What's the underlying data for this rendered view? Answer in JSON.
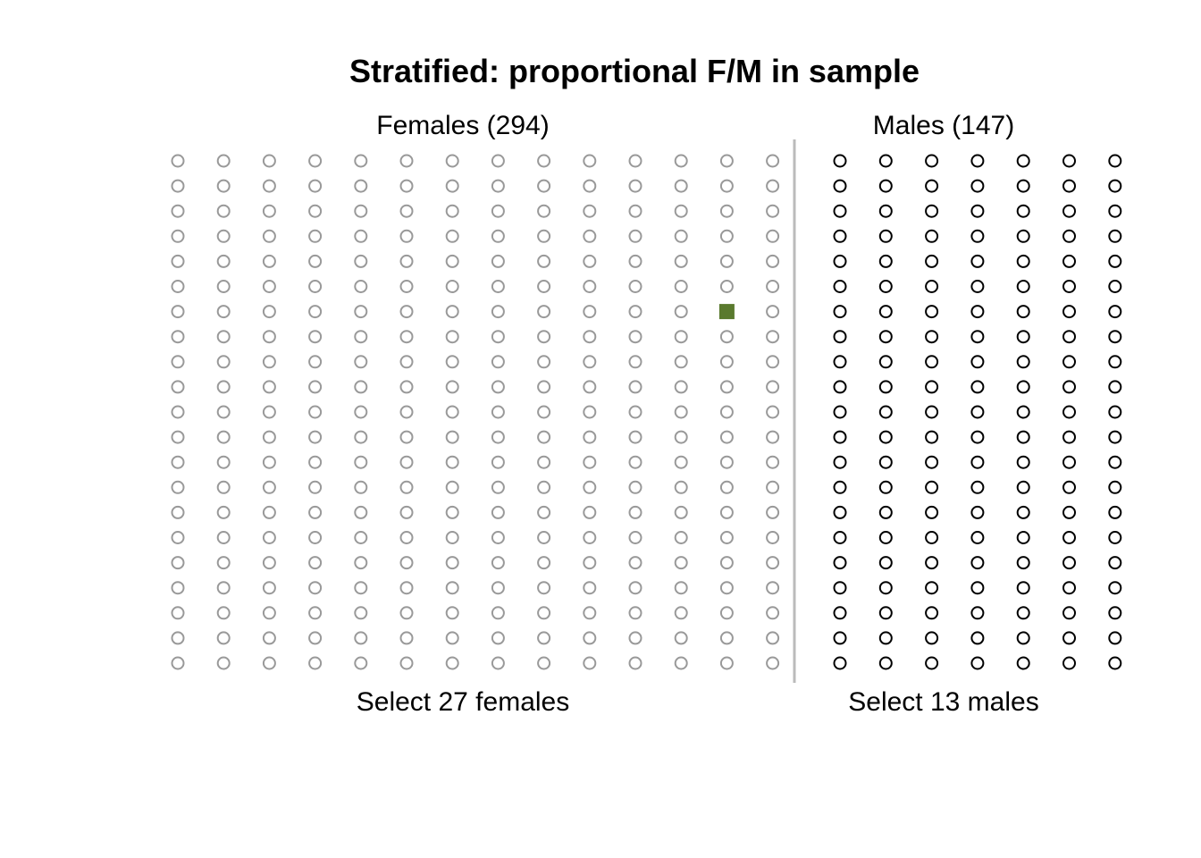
{
  "title": "Stratified: proportional F/M in sample",
  "groups": [
    {
      "name": "females",
      "header": "Females (294)",
      "footer": "Select 27 females",
      "count": 294,
      "columns": 14,
      "rows": 21,
      "point_color": "#999999",
      "selected": [
        {
          "row": 7,
          "col": 13
        }
      ]
    },
    {
      "name": "males",
      "header": "Males (147)",
      "footer": "Select 13 males",
      "count": 147,
      "columns": 7,
      "rows": 21,
      "point_color": "#000000",
      "selected": []
    }
  ],
  "selected_color": "#5a7a2e",
  "divider_color": "#bbbbbb"
}
